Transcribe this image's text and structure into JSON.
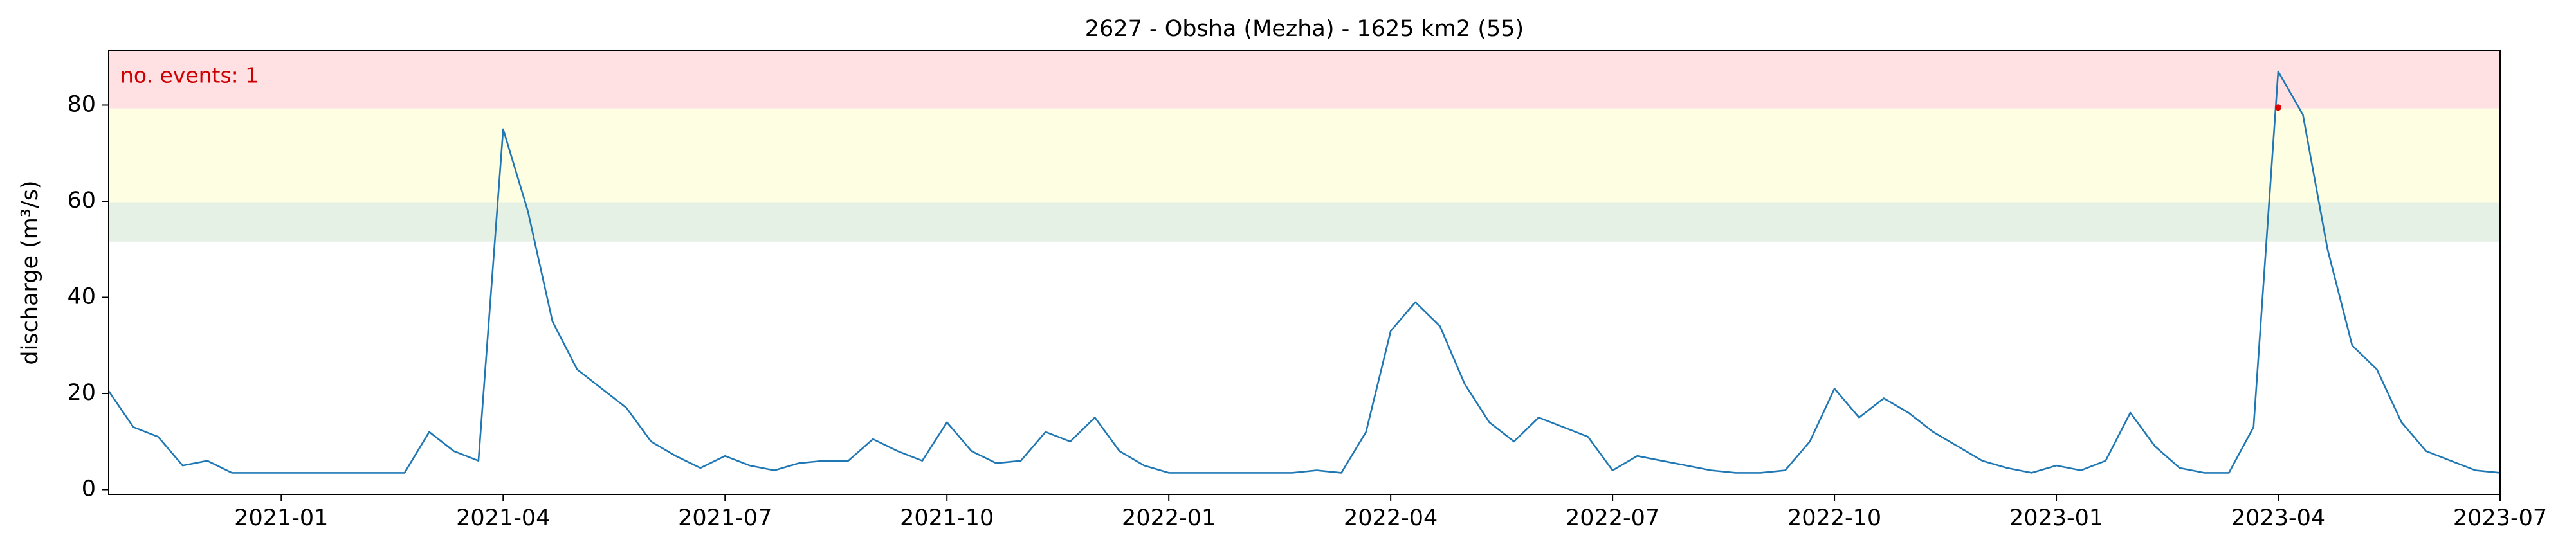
{
  "chart_data": {
    "type": "line",
    "title": "2627 - Obsha (Mezha) - 1625 km2 (55)",
    "ylabel": "discharge (m³/s)",
    "annotation": "no. events: 1",
    "annotation_color": "#cc0000",
    "categories": [
      null,
      null,
      null,
      null,
      null,
      null,
      null,
      "2021-01",
      null,
      null,
      null,
      null,
      null,
      null,
      null,
      null,
      "2021-04",
      null,
      null,
      null,
      null,
      null,
      null,
      null,
      null,
      "2021-07",
      null,
      null,
      null,
      null,
      null,
      null,
      null,
      null,
      "2021-10",
      null,
      null,
      null,
      null,
      null,
      null,
      null,
      null,
      "2022-01",
      null,
      null,
      null,
      null,
      null,
      null,
      null,
      null,
      "2022-04",
      null,
      null,
      null,
      null,
      null,
      null,
      null,
      null,
      "2022-07",
      null,
      null,
      null,
      null,
      null,
      null,
      null,
      null,
      "2022-10",
      null,
      null,
      null,
      null,
      null,
      null,
      null,
      null,
      "2023-01",
      null,
      null,
      null,
      null,
      null,
      null,
      null,
      null,
      "2023-04",
      null,
      null,
      null,
      null,
      null,
      null,
      null,
      null,
      "2023-07"
    ],
    "series": [
      {
        "color": "#1f77b4",
        "values": [
          20.5,
          13,
          11,
          5,
          6,
          3.5,
          3.5,
          3.5,
          3.5,
          3.5,
          3.5,
          3.5,
          3.5,
          12,
          8,
          6,
          75,
          58,
          35,
          25,
          21,
          17,
          10,
          7,
          4.5,
          7,
          5,
          4,
          5.5,
          6,
          6,
          10.5,
          8,
          6,
          14,
          8,
          5.5,
          6,
          12,
          10,
          15,
          8,
          5,
          3.5,
          3.5,
          3.5,
          3.5,
          3.5,
          3.5,
          4,
          3.5,
          12,
          33,
          39,
          34,
          22,
          14,
          10,
          15,
          13,
          11,
          4,
          7,
          6,
          5,
          4,
          3.5,
          3.5,
          4,
          10,
          21,
          15,
          19,
          16,
          12,
          9,
          6,
          4.5,
          3.5,
          5,
          4,
          6,
          16,
          9,
          4.5,
          3.5,
          3.5,
          13,
          87,
          78,
          50,
          30,
          25,
          14,
          8,
          6,
          4,
          3.5
        ]
      }
    ],
    "events": {
      "color": "#dd0000",
      "index": 88,
      "value": 79.5
    },
    "bands": [
      {
        "range": [
          79.3,
          91.3
        ],
        "color": "#ffe0e3"
      },
      {
        "range": [
          59.8,
          79.3
        ],
        "color": "#fefee2"
      },
      {
        "range": [
          51.6,
          59.8
        ],
        "color": "#e6f1e6"
      }
    ],
    "ylim": [
      -1,
      91.3
    ],
    "yticks": [
      0,
      20,
      40,
      60,
      80
    ]
  }
}
